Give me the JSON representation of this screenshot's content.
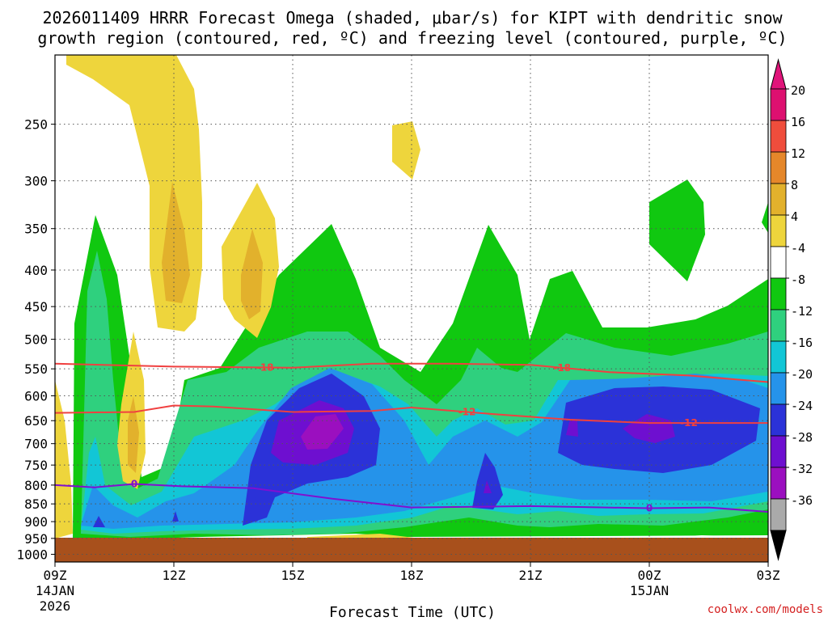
{
  "chart_data": {
    "type": "heatmap",
    "title_lines": [
      "2026011409 HRRR Forecast Omega (shaded, μbar/s) for KIPT with dendritic snow",
      "growth region (contoured, red, ºC) and freezing level (contoured, purple, ºC)"
    ],
    "xlabel": "Forecast Time (UTC)",
    "ylabel": "",
    "credit": "coolwx.com/models",
    "x_ticks": [
      {
        "hour": 0,
        "label": "09Z",
        "sub1": "14JAN",
        "sub2": "2026"
      },
      {
        "hour": 3,
        "label": "12Z"
      },
      {
        "hour": 6,
        "label": "15Z"
      },
      {
        "hour": 9,
        "label": "18Z"
      },
      {
        "hour": 12,
        "label": "21Z"
      },
      {
        "hour": 15,
        "label": "00Z",
        "sub1": "15JAN"
      },
      {
        "hour": 18,
        "label": "03Z"
      }
    ],
    "x_range_hours": [
      0,
      18
    ],
    "y_range_hpa": [
      200,
      1025
    ],
    "y_ticks": [
      250,
      300,
      350,
      400,
      450,
      500,
      550,
      600,
      650,
      700,
      750,
      800,
      850,
      900,
      950,
      1000
    ],
    "ground_pressure_hpa": 968,
    "colorbar": {
      "levels": [
        -36,
        -32,
        -28,
        -24,
        -20,
        -16,
        -12,
        -8,
        -4,
        4,
        8,
        12,
        16,
        20
      ],
      "colors": [
        "#aaaaaa",
        "#9b0fbf",
        "#6e0fd0",
        "#2b32d8",
        "#2593ea",
        "#12c6d6",
        "#2fd07e",
        "#10c810",
        "#ffffff",
        "#eed53c",
        "#e2b12c",
        "#e5872a",
        "#ef4d3c",
        "#dd1070"
      ],
      "below_color": "#000000",
      "above_color": "#e0147a"
    },
    "omega_regions": [
      {
        "level": "-8",
        "color": "#10c810",
        "description": "broad ascent 550-970 hPa, deep plumes to 350 hPa near 10Z, 15Z, 20Z, 22Z"
      },
      {
        "level": "-12",
        "color": "#2fd07e"
      },
      {
        "level": "-16",
        "color": "#12c6d6"
      },
      {
        "level": "-20",
        "color": "#2593ea"
      },
      {
        "level": "-24",
        "color": "#2b32d8"
      },
      {
        "level": "-28",
        "color": "#6e0fd0"
      },
      {
        "level": "-32",
        "color": "#9b0fbf"
      },
      {
        "level": "4",
        "color": "#eed53c",
        "description": "weak descent 200-500 hPa near 10-13Z"
      },
      {
        "level": "8",
        "color": "#e2b12c"
      }
    ],
    "contours": [
      {
        "name": "DGZ -18C",
        "color": "#f04040",
        "label": "-18",
        "points": [
          [
            0,
            541
          ],
          [
            3,
            546
          ],
          [
            6,
            548
          ],
          [
            8,
            541
          ],
          [
            10,
            541
          ],
          [
            12,
            543
          ],
          [
            14,
            556
          ],
          [
            16,
            562
          ],
          [
            18,
            574
          ]
        ]
      },
      {
        "name": "DGZ -12C",
        "color": "#f04040",
        "label": "-12",
        "points": [
          [
            0,
            634
          ],
          [
            2,
            632
          ],
          [
            3,
            619
          ],
          [
            4,
            621
          ],
          [
            6,
            632
          ],
          [
            8,
            630
          ],
          [
            9,
            623
          ],
          [
            11,
            636
          ],
          [
            13,
            648
          ],
          [
            15,
            655
          ],
          [
            18,
            655
          ]
        ]
      },
      {
        "name": "Freezing level 0C",
        "color": "#8010d0",
        "label": "0",
        "points": [
          [
            0,
            800
          ],
          [
            1,
            806
          ],
          [
            2,
            797
          ],
          [
            3.2,
            803
          ],
          [
            5,
            808
          ],
          [
            7,
            836
          ],
          [
            9,
            860
          ],
          [
            12,
            856
          ],
          [
            15,
            862
          ],
          [
            16.5,
            860
          ],
          [
            18,
            872
          ]
        ]
      }
    ]
  }
}
